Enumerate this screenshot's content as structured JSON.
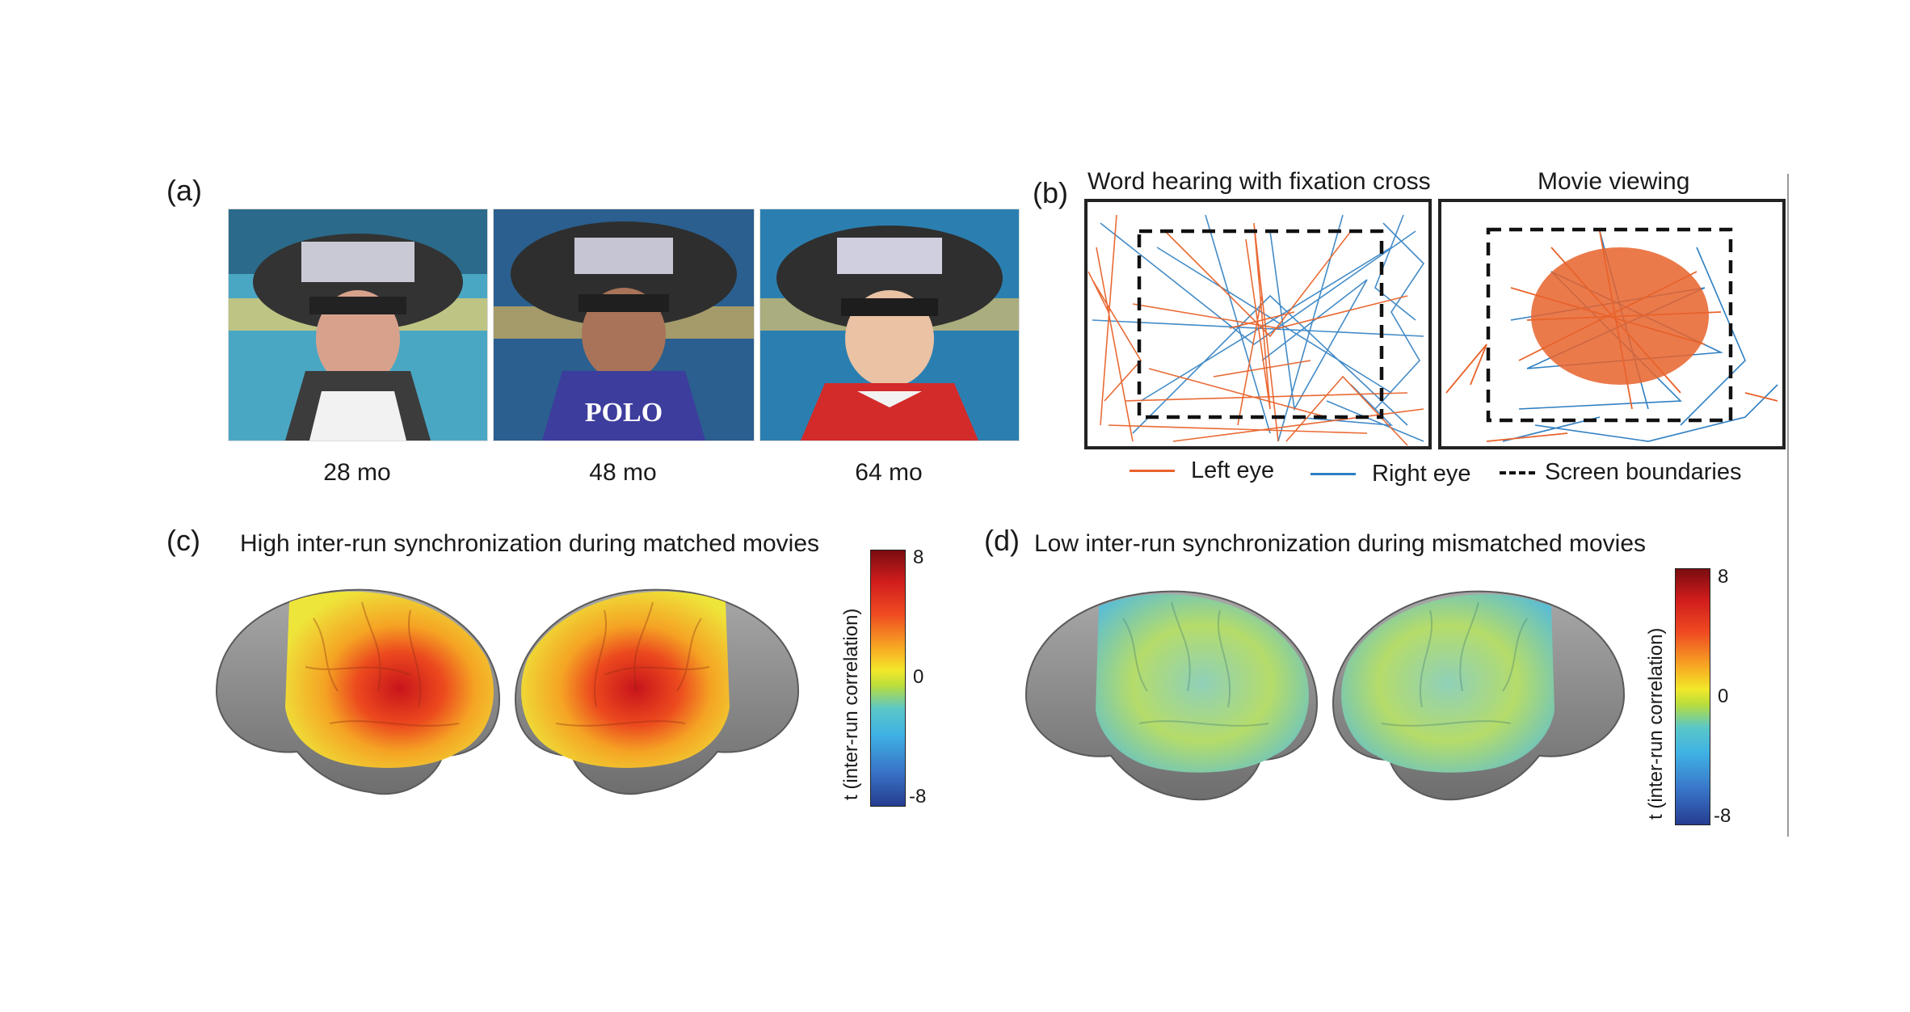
{
  "panel_a": {
    "letter": "(a)",
    "photos": [
      {
        "caption": "28 mo",
        "shirt_text": ""
      },
      {
        "caption": "48 mo",
        "shirt_text": "POLO"
      },
      {
        "caption": "64 mo",
        "shirt_text": ""
      }
    ]
  },
  "panel_b": {
    "letter": "(b)",
    "plots": [
      {
        "title": "Word hearing with fixation cross"
      },
      {
        "title": "Movie viewing"
      }
    ],
    "legend": [
      {
        "label": "Left eye",
        "color": "#e8632b"
      },
      {
        "label": "Right eye",
        "color": "#2f7fc1"
      },
      {
        "label": "Screen boundaries",
        "color": "#111111"
      }
    ]
  },
  "panel_c": {
    "letter": "(c)",
    "title": "High inter-run synchronization during matched movies",
    "colorbar": {
      "label": "t (inter-run correlation)",
      "ticks": [
        "8",
        "0",
        "-8"
      ]
    }
  },
  "panel_d": {
    "letter": "(d)",
    "title": "Low inter-run synchronization during mismatched movies",
    "colorbar": {
      "label": "t (inter-run correlation)",
      "ticks": [
        "8",
        "0",
        "-8"
      ]
    }
  }
}
